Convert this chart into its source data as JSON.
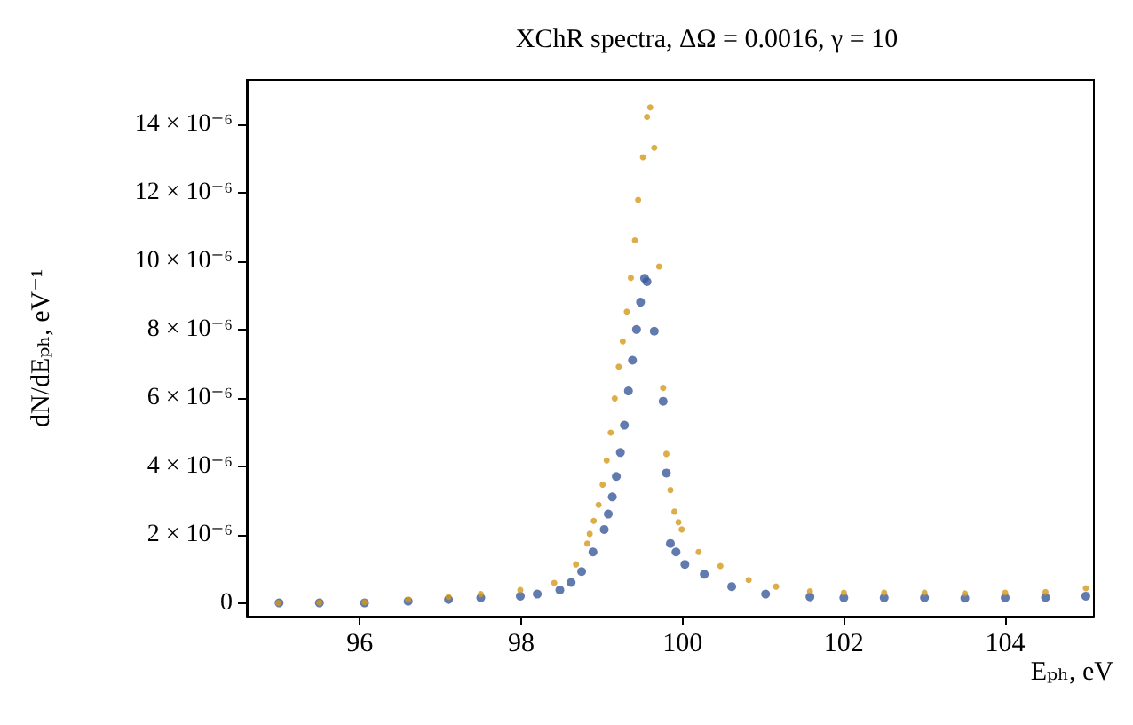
{
  "chart_data": {
    "type": "scatter",
    "title": "XChR spectra, ΔΩ = 0.0016, γ = 10",
    "xlabel": "Eₚₕ, eV",
    "ylabel": "dN/dEₚₕ, eV⁻¹",
    "xlim": [
      94.6,
      105.1
    ],
    "xticks": [
      96,
      98,
      100,
      102,
      104
    ],
    "ylim": [
      -4e-07,
      1.53e-05
    ],
    "yticks": [
      {
        "value": 0,
        "label": "0"
      },
      {
        "value": 2e-06,
        "label": "2 × 10⁻⁶"
      },
      {
        "value": 4e-06,
        "label": "4 × 10⁻⁶"
      },
      {
        "value": 6e-06,
        "label": "6 × 10⁻⁶"
      },
      {
        "value": 8e-06,
        "label": "8 × 10⁻⁶"
      },
      {
        "value": 1e-05,
        "label": "10 × 10⁻⁶"
      },
      {
        "value": 1.2e-05,
        "label": "12 × 10⁻⁶"
      },
      {
        "value": 1.4e-05,
        "label": "14 × 10⁻⁶"
      }
    ],
    "marker": "circle",
    "grid": false,
    "series": [
      {
        "color": "#3a5a9a",
        "x": [
          95.0,
          95.5,
          96.06,
          96.6,
          97.1,
          97.5,
          97.99,
          98.2,
          98.48,
          98.62,
          98.75,
          98.89,
          99.03,
          99.08,
          99.13,
          99.18,
          99.23,
          99.28,
          99.33,
          99.38,
          99.43,
          99.48,
          99.53,
          99.56,
          99.65,
          99.76,
          99.8,
          99.85,
          99.92,
          100.03,
          100.27,
          100.61,
          101.03,
          101.58,
          102.0,
          102.5,
          103.0,
          103.5,
          104.0,
          104.5,
          105.0
        ],
        "values": [
          0,
          0,
          0,
          5e-08,
          1e-07,
          1.5e-07,
          2e-07,
          2.6e-07,
          3.8e-07,
          6e-07,
          9.2e-07,
          1.49e-06,
          2.15e-06,
          2.6e-06,
          3.1e-06,
          3.7e-06,
          4.4e-06,
          5.2e-06,
          6.2e-06,
          7.1e-06,
          8e-06,
          8.8e-06,
          9.5e-06,
          9.4e-06,
          7.95e-06,
          5.9e-06,
          3.8e-06,
          1.74e-06,
          1.49e-06,
          1.13e-06,
          8.4e-07,
          4.8e-07,
          2.6e-07,
          1.8e-07,
          1.5e-07,
          1.5e-07,
          1.5e-07,
          1.4e-07,
          1.5e-07,
          1.6e-07,
          2e-07
        ]
      },
      {
        "color": "#d49a1a",
        "x": [
          94.99,
          95.5,
          96.06,
          96.6,
          97.1,
          97.5,
          97.99,
          98.41,
          98.68,
          98.82,
          98.85,
          98.9,
          98.96,
          99.01,
          99.06,
          99.11,
          99.16,
          99.21,
          99.26,
          99.31,
          99.36,
          99.41,
          99.45,
          99.51,
          99.56,
          99.6,
          99.65,
          99.71,
          99.76,
          99.8,
          99.85,
          99.9,
          99.95,
          99.99,
          100.2,
          100.47,
          100.82,
          101.16,
          101.58,
          102.0,
          102.5,
          103.0,
          103.5,
          104.0,
          104.5,
          105.0
        ],
        "values": [
          0,
          1e-08,
          2e-08,
          1e-07,
          1.8e-07,
          2.6e-07,
          3.8e-07,
          5.9e-07,
          1.13e-06,
          1.74e-06,
          2.02e-06,
          2.4e-06,
          2.87e-06,
          3.46e-06,
          4.17e-06,
          4.98e-06,
          5.98e-06,
          6.91e-06,
          7.65e-06,
          8.52e-06,
          9.51e-06,
          1.061e-05,
          1.179e-05,
          1.304e-05,
          1.422e-05,
          1.45e-05,
          1.332e-05,
          9.84e-06,
          6.29e-06,
          4.36e-06,
          3.3e-06,
          2.67e-06,
          2.36e-06,
          2.15e-06,
          1.49e-06,
          1.08e-06,
          6.7e-07,
          4.8e-07,
          3.4e-07,
          3e-07,
          3e-07,
          3e-07,
          2.8e-07,
          3e-07,
          3.2e-07,
          4.3e-07
        ]
      }
    ]
  }
}
